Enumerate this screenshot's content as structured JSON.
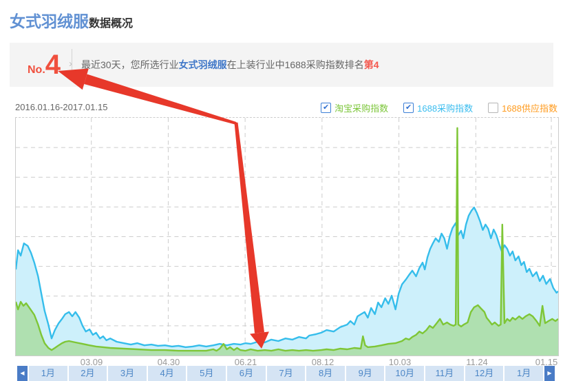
{
  "header": {
    "title_main": "女式羽绒服",
    "title_sub": "数据概况"
  },
  "banner": {
    "rank_prefix": "No.",
    "rank_number": "4",
    "text_part1": "最近30天，您所选行业",
    "text_keyword": "女式羽绒服",
    "text_part2": "在上装行业中1688采购指数排名",
    "text_rank": "第4"
  },
  "chart": {
    "date_range": "2016.01.16-2017.01.15",
    "legend": [
      {
        "label": "淘宝采购指数",
        "checked": true,
        "color": "#7cc63a"
      },
      {
        "label": "1688采购指数",
        "checked": true,
        "color": "#3bbdef"
      },
      {
        "label": "1688供应指数",
        "checked": false,
        "color": "#ff9b1e"
      }
    ]
  },
  "colors": {
    "title_blue": "#6191d3",
    "rank_red": "#f0503e",
    "arrow_red": "#e7382a",
    "grid": "#cccccc",
    "tab_bg": "#d5e4f4",
    "tab_text": "#4c86c6",
    "tab_nav_bg": "#4a7cc6"
  },
  "chart_data": {
    "type": "area",
    "title": "女式羽绒服数据概况",
    "x_tick_labels": [
      "03.09",
      "04.30",
      "06.21",
      "08.12",
      "10.03",
      "11.24",
      "01.15"
    ],
    "x_range": [
      "2016.01.16",
      "2017.01.15"
    ],
    "ylim": [
      0,
      100
    ],
    "value_units": "relative index (no numeric y-axis shown; 100 = plot top)",
    "grid": true,
    "legend_position": "top-right",
    "series": [
      {
        "name": "1688采购指数",
        "color": "#35bdeb",
        "fill": "#cdf0fb",
        "points": [
          [
            0,
            36.2
          ],
          [
            0.4,
            44.3
          ],
          [
            0.9,
            42
          ],
          [
            1.5,
            47.2
          ],
          [
            2.2,
            46.1
          ],
          [
            2.8,
            43.2
          ],
          [
            3.4,
            39.1
          ],
          [
            4.1,
            33.3
          ],
          [
            4.7,
            26.1
          ],
          [
            5.3,
            18.8
          ],
          [
            6,
            13
          ],
          [
            6.6,
            7.2
          ],
          [
            7.2,
            10.7
          ],
          [
            7.9,
            13.6
          ],
          [
            8.5,
            15.4
          ],
          [
            9.1,
            17.4
          ],
          [
            9.8,
            18.3
          ],
          [
            10.4,
            16.5
          ],
          [
            11,
            18.3
          ],
          [
            11.7,
            15.9
          ],
          [
            12.3,
            12.5
          ],
          [
            12.9,
            10.1
          ],
          [
            13.6,
            11
          ],
          [
            14.2,
            8.7
          ],
          [
            14.8,
            9.6
          ],
          [
            15.5,
            7.2
          ],
          [
            16.1,
            8.1
          ],
          [
            16.7,
            6.4
          ],
          [
            17.4,
            7.2
          ],
          [
            18.6,
            5.8
          ],
          [
            19.9,
            5.2
          ],
          [
            21.2,
            4.6
          ],
          [
            22.4,
            5.2
          ],
          [
            23.7,
            4.3
          ],
          [
            25,
            4.6
          ],
          [
            26.2,
            4.1
          ],
          [
            27.5,
            4.3
          ],
          [
            28.8,
            3.8
          ],
          [
            30,
            4.1
          ],
          [
            31.3,
            3.5
          ],
          [
            32.6,
            3.8
          ],
          [
            33.8,
            4.3
          ],
          [
            35.1,
            3.8
          ],
          [
            36.4,
            4.3
          ],
          [
            37.6,
            4.9
          ],
          [
            38.9,
            4.3
          ],
          [
            40.2,
            4.9
          ],
          [
            41.4,
            4.6
          ],
          [
            42.3,
            5.2
          ],
          [
            43.3,
            4.9
          ],
          [
            44.6,
            5.8
          ],
          [
            45.9,
            5.5
          ],
          [
            47.1,
            6.7
          ],
          [
            48.4,
            6.1
          ],
          [
            49.7,
            7.2
          ],
          [
            51,
            6.7
          ],
          [
            52.2,
            7.8
          ],
          [
            53.5,
            7.2
          ],
          [
            54.1,
            8.4
          ],
          [
            55.4,
            9
          ],
          [
            56.3,
            9.6
          ],
          [
            57.3,
            10.7
          ],
          [
            58.6,
            10.1
          ],
          [
            59.8,
            11.9
          ],
          [
            61.1,
            13
          ],
          [
            61.7,
            14.5
          ],
          [
            62.4,
            13
          ],
          [
            63,
            16.5
          ],
          [
            64.3,
            18.3
          ],
          [
            64.9,
            15.9
          ],
          [
            65.5,
            20
          ],
          [
            66.2,
            17.4
          ],
          [
            66.8,
            22.3
          ],
          [
            67.4,
            20.3
          ],
          [
            68.1,
            24.1
          ],
          [
            68.7,
            21.7
          ],
          [
            69.3,
            25.2
          ],
          [
            70,
            19.4
          ],
          [
            70.6,
            26.1
          ],
          [
            71.2,
            29.9
          ],
          [
            71.9,
            31.9
          ],
          [
            72.5,
            33.9
          ],
          [
            73.1,
            35.7
          ],
          [
            73.8,
            33.3
          ],
          [
            74.4,
            36.8
          ],
          [
            75,
            39.1
          ],
          [
            75.4,
            36.2
          ],
          [
            75.9,
            41.4
          ],
          [
            76.4,
            44.9
          ],
          [
            76.9,
            47.2
          ],
          [
            77.4,
            49.3
          ],
          [
            78,
            47.8
          ],
          [
            78.5,
            51.3
          ],
          [
            79,
            49.3
          ],
          [
            79.5,
            44.9
          ],
          [
            80,
            50.1
          ],
          [
            80.5,
            53.6
          ],
          [
            81.1,
            55.7
          ],
          [
            81.6,
            50.7
          ],
          [
            82.1,
            52.5
          ],
          [
            82.5,
            49.3
          ],
          [
            83,
            55.1
          ],
          [
            83.5,
            58.8
          ],
          [
            84,
            60.9
          ],
          [
            84.5,
            62.3
          ],
          [
            85,
            60
          ],
          [
            85.6,
            56.5
          ],
          [
            86.1,
            52.8
          ],
          [
            86.6,
            55.1
          ],
          [
            87.1,
            53.3
          ],
          [
            87.6,
            49.3
          ],
          [
            88.1,
            53
          ],
          [
            88.6,
            50.7
          ],
          [
            89.1,
            47
          ],
          [
            89.6,
            43.8
          ],
          [
            90.1,
            46.4
          ],
          [
            90.6,
            44.9
          ],
          [
            91.1,
            42
          ],
          [
            91.6,
            43.8
          ],
          [
            92.1,
            40
          ],
          [
            92.7,
            41.7
          ],
          [
            93.2,
            38
          ],
          [
            93.7,
            39.4
          ],
          [
            94.2,
            35.1
          ],
          [
            94.7,
            36.5
          ],
          [
            95.3,
            33.3
          ],
          [
            96,
            35.1
          ],
          [
            96.6,
            31.3
          ],
          [
            97.2,
            33.6
          ],
          [
            97.8,
            30.1
          ],
          [
            98.5,
            32.2
          ],
          [
            99.1,
            28.4
          ],
          [
            99.7,
            26.4
          ],
          [
            100,
            27
          ]
        ]
      },
      {
        "name": "淘宝采购指数",
        "color": "#7ec636",
        "fill": "rgba(126,198,54,0.38)",
        "points": [
          [
            0,
            22.6
          ],
          [
            0.4,
            19.4
          ],
          [
            0.9,
            22.6
          ],
          [
            1.4,
            20.9
          ],
          [
            1.9,
            22
          ],
          [
            2.8,
            19.1
          ],
          [
            3.4,
            17.1
          ],
          [
            4.1,
            13
          ],
          [
            4.7,
            8.7
          ],
          [
            5.3,
            5.2
          ],
          [
            6,
            3.2
          ],
          [
            6.6,
            2.3
          ],
          [
            7.2,
            3.2
          ],
          [
            7.9,
            4.3
          ],
          [
            8.5,
            5.2
          ],
          [
            9.1,
            5.8
          ],
          [
            9.8,
            6.1
          ],
          [
            11,
            5.5
          ],
          [
            12.3,
            4.9
          ],
          [
            13.6,
            4.3
          ],
          [
            14.8,
            3.8
          ],
          [
            16.1,
            3.5
          ],
          [
            17.4,
            3.2
          ],
          [
            19.9,
            2.9
          ],
          [
            22.4,
            2.6
          ],
          [
            25,
            2.3
          ],
          [
            27.5,
            2.3
          ],
          [
            30,
            2
          ],
          [
            32.6,
            2
          ],
          [
            35.1,
            2
          ],
          [
            36.4,
            2.6
          ],
          [
            37,
            2
          ],
          [
            37.6,
            2.9
          ],
          [
            38.3,
            4.9
          ],
          [
            38.9,
            2.6
          ],
          [
            39.5,
            3.5
          ],
          [
            40.2,
            2.3
          ],
          [
            40.8,
            3.2
          ],
          [
            41.4,
            2.3
          ],
          [
            42.3,
            2
          ],
          [
            43.3,
            2.6
          ],
          [
            44.6,
            2
          ],
          [
            45.9,
            2.3
          ],
          [
            47.1,
            2
          ],
          [
            48.4,
            2.6
          ],
          [
            49.7,
            2
          ],
          [
            51,
            2.3
          ],
          [
            52.2,
            2
          ],
          [
            53.5,
            2.3
          ],
          [
            54.8,
            2
          ],
          [
            56.3,
            2.3
          ],
          [
            57.3,
            2.6
          ],
          [
            58.6,
            2.3
          ],
          [
            59.8,
            2.9
          ],
          [
            61.1,
            2.6
          ],
          [
            62.4,
            3.2
          ],
          [
            63.6,
            2.9
          ],
          [
            64,
            8.1
          ],
          [
            64.4,
            4.3
          ],
          [
            64.9,
            3.5
          ],
          [
            66.2,
            3.8
          ],
          [
            67.4,
            4.3
          ],
          [
            68.7,
            4.9
          ],
          [
            70,
            5.2
          ],
          [
            71.2,
            6.1
          ],
          [
            71.9,
            7.2
          ],
          [
            72.5,
            6.7
          ],
          [
            73.1,
            7.8
          ],
          [
            73.8,
            8.7
          ],
          [
            74.4,
            10.1
          ],
          [
            75,
            9.3
          ],
          [
            75.7,
            10.7
          ],
          [
            76.3,
            12.5
          ],
          [
            76.9,
            11.6
          ],
          [
            77.6,
            13.6
          ],
          [
            78.2,
            15.4
          ],
          [
            78.8,
            13
          ],
          [
            79.5,
            13.9
          ],
          [
            80.1,
            13
          ],
          [
            80.7,
            12.5
          ],
          [
            81.1,
            13
          ],
          [
            81.4,
            95.7
          ],
          [
            81.6,
            13
          ],
          [
            82.1,
            12.2
          ],
          [
            82.6,
            13
          ],
          [
            83.3,
            13.9
          ],
          [
            83.9,
            18.3
          ],
          [
            84.5,
            20.3
          ],
          [
            85.2,
            21.2
          ],
          [
            85.8,
            19.7
          ],
          [
            86.4,
            18.3
          ],
          [
            86.8,
            15.9
          ],
          [
            87.3,
            14.5
          ],
          [
            87.8,
            13
          ],
          [
            88.3,
            13.9
          ],
          [
            89,
            12.5
          ],
          [
            89.4,
            13
          ],
          [
            89.7,
            55.1
          ],
          [
            90.1,
            13.6
          ],
          [
            90.6,
            15.4
          ],
          [
            91.1,
            14.5
          ],
          [
            91.6,
            15.9
          ],
          [
            92.1,
            15.1
          ],
          [
            92.8,
            16.5
          ],
          [
            93.4,
            15.4
          ],
          [
            94,
            16.5
          ],
          [
            94.7,
            17.4
          ],
          [
            95.3,
            16.5
          ],
          [
            96,
            14.5
          ],
          [
            96.6,
            12.5
          ],
          [
            97.1,
            20.9
          ],
          [
            97.6,
            13.6
          ],
          [
            98.2,
            14.5
          ],
          [
            98.9,
            15.4
          ],
          [
            99.5,
            14.5
          ],
          [
            100,
            15.4
          ]
        ]
      }
    ]
  },
  "tabs": {
    "prev_icon": "◀",
    "next_icon": "▶",
    "items": [
      "1月",
      "2月",
      "3月",
      "4月",
      "5月",
      "6月",
      "7月",
      "8月",
      "9月",
      "10月",
      "11月",
      "12月",
      "1月"
    ]
  }
}
